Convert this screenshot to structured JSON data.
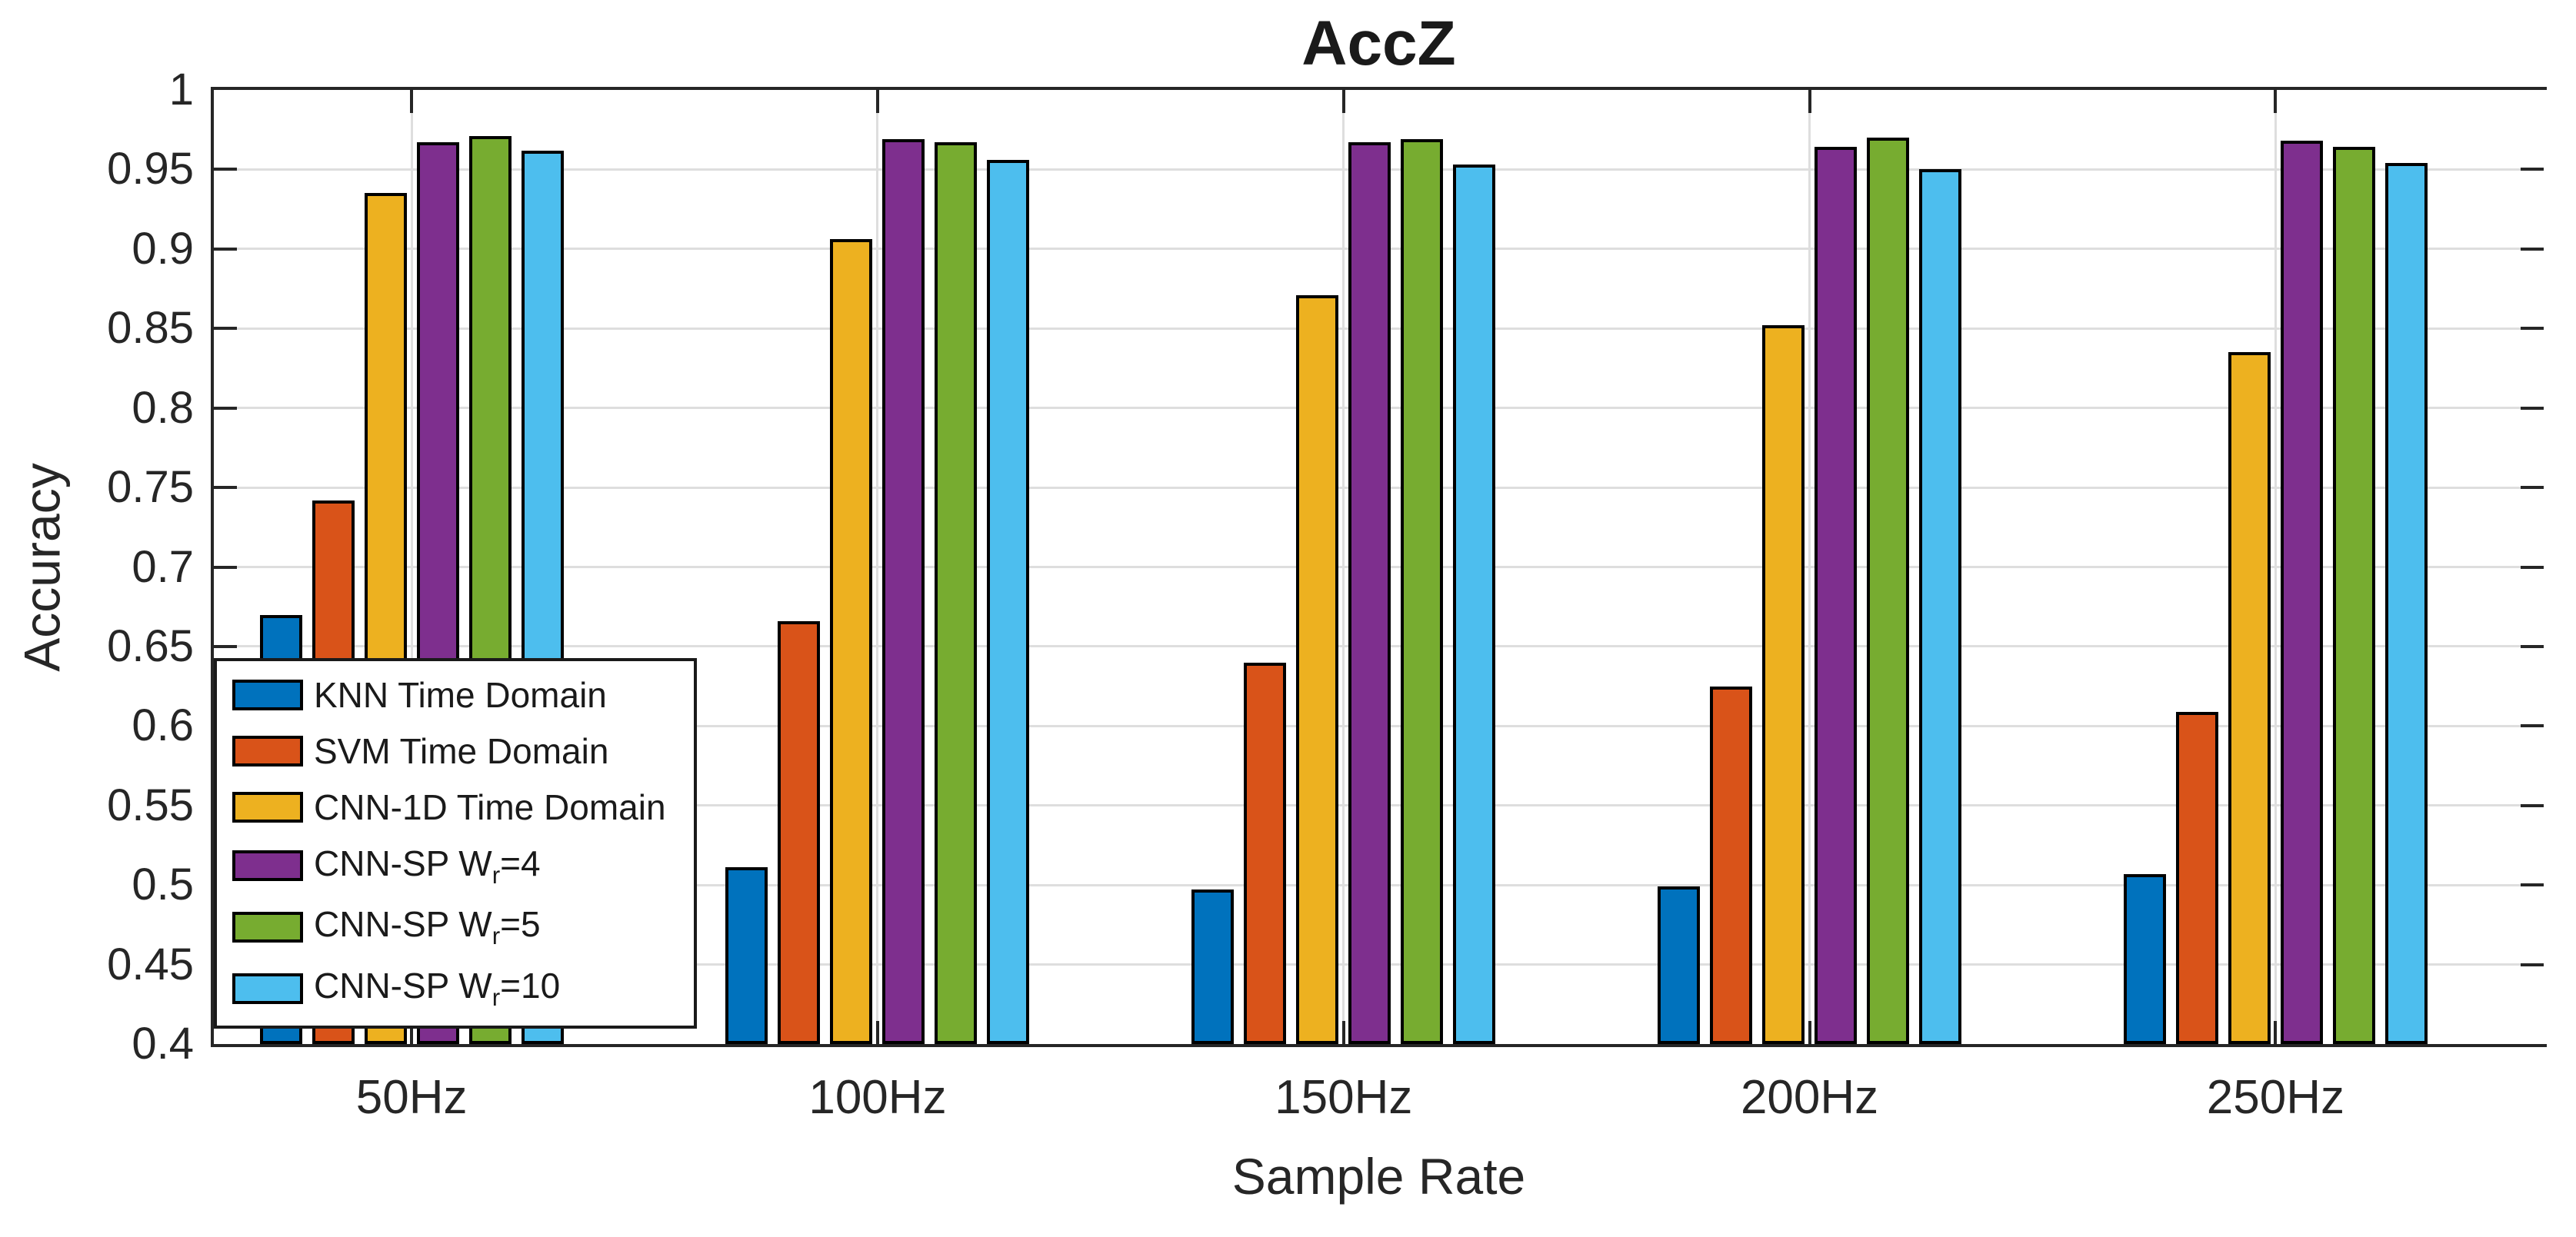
{
  "title": "AccZ",
  "axes": {
    "xlabel": "Sample Rate",
    "ylabel": "Accuracy",
    "ylim": [
      0.4,
      1.0
    ],
    "ytick_step": 0.05,
    "ytick_labels": [
      "0.4",
      "0.45",
      "0.5",
      "0.55",
      "0.6",
      "0.65",
      "0.7",
      "0.75",
      "0.8",
      "0.85",
      "0.9",
      "0.95",
      "1"
    ],
    "xtick_labels": [
      "50Hz",
      "100Hz",
      "150Hz",
      "200Hz",
      "250Hz"
    ],
    "grid": "on",
    "axis_color": "#262626",
    "grid_color": "#DEDEDE"
  },
  "legend": {
    "position": "bottom-left-inside",
    "items": [
      {
        "pre": "KNN Time Domain",
        "sub": "",
        "post": "",
        "color": "#0072BD"
      },
      {
        "pre": "SVM Time Domain",
        "sub": "",
        "post": "",
        "color": "#D95319"
      },
      {
        "pre": "CNN-1D Time Domain",
        "sub": "",
        "post": "",
        "color": "#EDB120"
      },
      {
        "pre": "CNN-SP W",
        "sub": "r",
        "post": "=4",
        "color": "#7E2F8E"
      },
      {
        "pre": "CNN-SP W",
        "sub": "r",
        "post": "=5",
        "color": "#77AC30"
      },
      {
        "pre": "CNN-SP W",
        "sub": "r",
        "post": "=10",
        "color": "#4DBEEE"
      }
    ]
  },
  "chart_data": {
    "type": "bar",
    "title": "AccZ",
    "xlabel": "Sample Rate",
    "ylabel": "Accuracy",
    "ylim": [
      0.4,
      1.0
    ],
    "grid": true,
    "legend_position": "bottom-left-inside",
    "categories": [
      "50Hz",
      "100Hz",
      "150Hz",
      "200Hz",
      "250Hz"
    ],
    "series": [
      {
        "name": "KNN Time Domain",
        "color": "#0072BD",
        "values": [
          0.67,
          0.511,
          0.497,
          0.499,
          0.507
        ]
      },
      {
        "name": "SVM Time Domain",
        "color": "#D95319",
        "values": [
          0.742,
          0.666,
          0.64,
          0.625,
          0.609
        ]
      },
      {
        "name": "CNN-1D Time Domain",
        "color": "#EDB120",
        "values": [
          0.935,
          0.906,
          0.871,
          0.852,
          0.835
        ]
      },
      {
        "name": "CNN-SP Wr=4",
        "color": "#7E2F8E",
        "values": [
          0.967,
          0.969,
          0.967,
          0.964,
          0.968
        ]
      },
      {
        "name": "CNN-SP Wr=5",
        "color": "#77AC30",
        "values": [
          0.971,
          0.967,
          0.969,
          0.97,
          0.964
        ]
      },
      {
        "name": "CNN-SP Wr=10",
        "color": "#4DBEEE",
        "values": [
          0.962,
          0.956,
          0.953,
          0.95,
          0.954
        ]
      }
    ]
  }
}
